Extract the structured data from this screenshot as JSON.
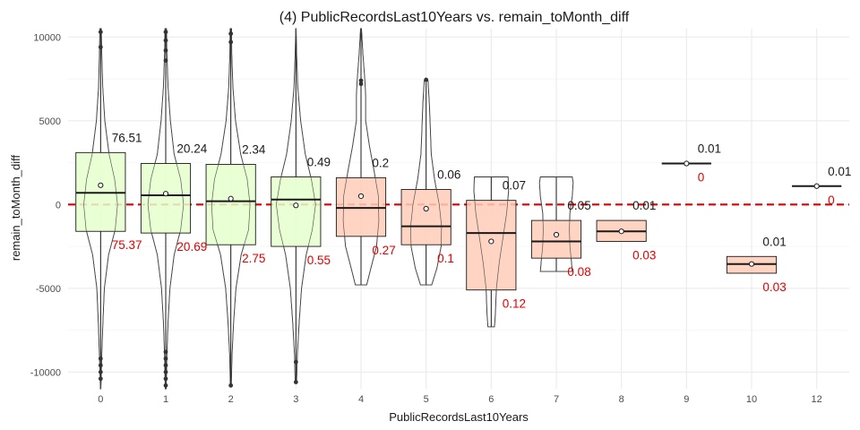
{
  "chart_data": {
    "type": "boxplot-violin",
    "title": "(4) PublicRecordsLast10Years vs. remain_toMonth_diff",
    "xlabel": "PublicRecordsLast10Years",
    "ylabel": "remain_toMonth_diff",
    "categories": [
      "0",
      "1",
      "2",
      "3",
      "4",
      "5",
      "6",
      "7",
      "8",
      "9",
      "10",
      "12"
    ],
    "ylim": [
      -11000,
      10500
    ],
    "yticks": [
      -10000,
      -5000,
      0,
      5000,
      10000
    ],
    "ytick_labels": [
      "-10000",
      "-5000",
      "0",
      "5000",
      "10000"
    ],
    "reference_line": 0,
    "grid": true,
    "colors": {
      "above": "#e5ffcc",
      "below": "#ffcdb8",
      "reference": "#e00000",
      "label_above": "#1a1a1a",
      "label_below": "#e00000"
    },
    "groups": [
      {
        "cat": "0",
        "q1": -1600,
        "median": 700,
        "q3": 3100,
        "mean": 1150,
        "whisker_low": -11000,
        "whisker_high": 10500,
        "pct_above": "76.51",
        "pct_below": "75.37",
        "fill": "above",
        "violin": [
          [
            -11000,
            0.01
          ],
          [
            -9000,
            0.05
          ],
          [
            -7000,
            0.1
          ],
          [
            -5000,
            0.16
          ],
          [
            -3000,
            0.34
          ],
          [
            -1500,
            0.62
          ],
          [
            0,
            0.72
          ],
          [
            1500,
            0.6
          ],
          [
            3000,
            0.36
          ],
          [
            5000,
            0.18
          ],
          [
            7000,
            0.09
          ],
          [
            9000,
            0.05
          ],
          [
            10500,
            0.03
          ]
        ]
      },
      {
        "cat": "1",
        "q1": -1700,
        "median": 550,
        "q3": 2450,
        "mean": 650,
        "whisker_low": -11000,
        "whisker_high": 10500,
        "pct_above": "20.24",
        "pct_below": "20.69",
        "fill": "above",
        "violin": [
          [
            -11000,
            0.02
          ],
          [
            -9000,
            0.05
          ],
          [
            -7000,
            0.1
          ],
          [
            -5000,
            0.18
          ],
          [
            -3000,
            0.36
          ],
          [
            -1500,
            0.64
          ],
          [
            0,
            0.76
          ],
          [
            1500,
            0.64
          ],
          [
            3000,
            0.36
          ],
          [
            5000,
            0.2
          ],
          [
            7000,
            0.1
          ],
          [
            9000,
            0.05
          ],
          [
            10500,
            0.03
          ]
        ]
      },
      {
        "cat": "2",
        "q1": -2400,
        "median": 200,
        "q3": 2400,
        "mean": 350,
        "whisker_low": -10800,
        "whisker_high": 10500,
        "pct_above": "2.34",
        "pct_below": "2.75",
        "fill": "above",
        "violin": [
          [
            -10800,
            0.02
          ],
          [
            -9000,
            0.05
          ],
          [
            -7000,
            0.12
          ],
          [
            -5000,
            0.22
          ],
          [
            -3000,
            0.44
          ],
          [
            -1500,
            0.76
          ],
          [
            0,
            0.82
          ],
          [
            1500,
            0.7
          ],
          [
            3000,
            0.42
          ],
          [
            5000,
            0.2
          ],
          [
            7000,
            0.09
          ],
          [
            9000,
            0.04
          ],
          [
            10500,
            0.03
          ]
        ]
      },
      {
        "cat": "3",
        "q1": -2500,
        "median": 300,
        "q3": 1650,
        "mean": -50,
        "whisker_low": -10600,
        "whisker_high": 10500,
        "pct_above": "0.49",
        "pct_below": "0.55",
        "fill": "above",
        "violin": [
          [
            -10600,
            0.03
          ],
          [
            -9000,
            0.06
          ],
          [
            -7000,
            0.14
          ],
          [
            -5000,
            0.24
          ],
          [
            -3000,
            0.44
          ],
          [
            -1500,
            0.7
          ],
          [
            0,
            0.84
          ],
          [
            1500,
            0.66
          ],
          [
            3000,
            0.4
          ],
          [
            5000,
            0.2
          ],
          [
            7000,
            0.08
          ],
          [
            9000,
            0.03
          ],
          [
            10500,
            0.01
          ]
        ]
      },
      {
        "cat": "4",
        "q1": -1900,
        "median": -200,
        "q3": 1600,
        "mean": 500,
        "whisker_low": -4800,
        "whisker_high": 10500,
        "pct_above": "0.2",
        "pct_below": "0.27",
        "fill": "below",
        "violin": [
          [
            -4800,
            0.24
          ],
          [
            -3800,
            0.42
          ],
          [
            -2500,
            0.66
          ],
          [
            -1000,
            0.76
          ],
          [
            500,
            0.74
          ],
          [
            2000,
            0.56
          ],
          [
            3500,
            0.36
          ],
          [
            5000,
            0.2
          ],
          [
            6500,
            0.2
          ],
          [
            7500,
            0.16
          ],
          [
            9000,
            0.08
          ],
          [
            10500,
            0.02
          ]
        ]
      },
      {
        "cat": "5",
        "q1": -2400,
        "median": -1300,
        "q3": 900,
        "mean": -250,
        "whisker_low": -4800,
        "whisker_high": 7400,
        "pct_above": "0.06",
        "pct_below": "0.1",
        "fill": "below",
        "violin": [
          [
            -4800,
            0.24
          ],
          [
            -3800,
            0.46
          ],
          [
            -2500,
            0.64
          ],
          [
            -1300,
            0.66
          ],
          [
            0,
            0.56
          ],
          [
            1500,
            0.36
          ],
          [
            3000,
            0.22
          ],
          [
            4500,
            0.18
          ],
          [
            6000,
            0.14
          ],
          [
            7400,
            0.08
          ]
        ]
      },
      {
        "cat": "6",
        "q1": -5100,
        "median": -1700,
        "q3": 250,
        "mean": -2200,
        "whisker_low": -7300,
        "whisker_high": 1650,
        "pct_above": "0.07",
        "pct_below": "0.12",
        "fill": "below",
        "violin": [
          [
            -7300,
            0.14
          ],
          [
            -6500,
            0.18
          ],
          [
            -5000,
            0.22
          ],
          [
            -3500,
            0.34
          ],
          [
            -2000,
            0.5
          ],
          [
            -500,
            0.66
          ],
          [
            800,
            0.74
          ],
          [
            1650,
            0.72
          ]
        ]
      },
      {
        "cat": "7",
        "q1": -3200,
        "median": -2200,
        "q3": -950,
        "mean": -1800,
        "whisker_low": -4000,
        "whisker_high": 1650,
        "pct_above": "0.05",
        "pct_below": "0.08",
        "fill": "below",
        "violin": [
          [
            -4000,
            0.68
          ],
          [
            -3300,
            0.64
          ],
          [
            -2500,
            0.58
          ],
          [
            -1500,
            0.56
          ],
          [
            -500,
            0.58
          ],
          [
            500,
            0.68
          ],
          [
            1300,
            0.72
          ],
          [
            1650,
            0.68
          ]
        ]
      },
      {
        "cat": "8",
        "q1": -2200,
        "median": -1600,
        "q3": -950,
        "mean": -1600,
        "whisker_low": -2200,
        "whisker_high": -950,
        "pct_above": "0.01",
        "pct_below": "0.03",
        "fill": "below",
        "violin": []
      },
      {
        "cat": "9",
        "q1": 2450,
        "median": 2450,
        "q3": 2450,
        "mean": 2450,
        "whisker_low": 2450,
        "whisker_high": 2450,
        "pct_above": "0.01",
        "pct_below": "0",
        "fill": "none",
        "violin": []
      },
      {
        "cat": "10",
        "q1": -4100,
        "median": -3550,
        "q3": -3100,
        "mean": -3550,
        "whisker_low": -4100,
        "whisker_high": -3100,
        "pct_above": "0.01",
        "pct_below": "0.03",
        "fill": "below",
        "violin": []
      },
      {
        "cat": "12",
        "q1": 1100,
        "median": 1100,
        "q3": 1100,
        "mean": 1100,
        "whisker_low": 1100,
        "whisker_high": 1100,
        "pct_above": "0.01",
        "pct_below": "0",
        "fill": "none",
        "violin": []
      }
    ],
    "outliers": [
      {
        "cat": "0",
        "values": [
          10300,
          9400,
          -9200,
          -9600,
          -10000,
          -10400
        ]
      },
      {
        "cat": "1",
        "values": [
          10300,
          9800,
          9200,
          8600,
          -8800,
          -9200,
          -9600,
          -10000,
          -10400,
          -10800
        ]
      },
      {
        "cat": "2",
        "values": [
          10200,
          9700,
          -10800
        ]
      },
      {
        "cat": "3",
        "values": [
          -9400,
          -10600
        ]
      },
      {
        "cat": "4",
        "values": [
          7400,
          7200
        ]
      },
      {
        "cat": "5",
        "values": [
          7450
        ]
      }
    ]
  }
}
